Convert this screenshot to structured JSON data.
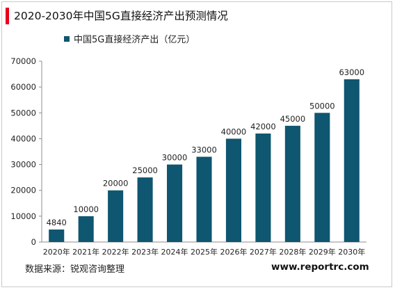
{
  "title": "2020-2030年中国5G直接经济产出预测情况",
  "source": "数据来源：锐观咨询整理",
  "site": "www.reportrc.com",
  "colors": {
    "accent": "#e8001c",
    "bar": "#0f5670",
    "axis": "#8c8c8c",
    "text": "#222222"
  },
  "chart_data": {
    "type": "bar",
    "title": "2020-2030年中国5G直接经济产出预测情况",
    "categories": [
      "2020年",
      "2021年",
      "2022年",
      "2023年",
      "2024年",
      "2025年",
      "2026年",
      "2027年",
      "2028年",
      "2029年",
      "2030年"
    ],
    "series": [
      {
        "name": "中国5G直接经济产出（亿元）",
        "values": [
          4840,
          10000,
          20000,
          25000,
          30000,
          33000,
          40000,
          42000,
          45000,
          50000,
          63000
        ]
      }
    ],
    "ylim": [
      0,
      70000
    ],
    "yticks": [
      0,
      10000,
      20000,
      30000,
      40000,
      50000,
      60000,
      70000
    ],
    "grid": false,
    "legend": "top-left"
  }
}
